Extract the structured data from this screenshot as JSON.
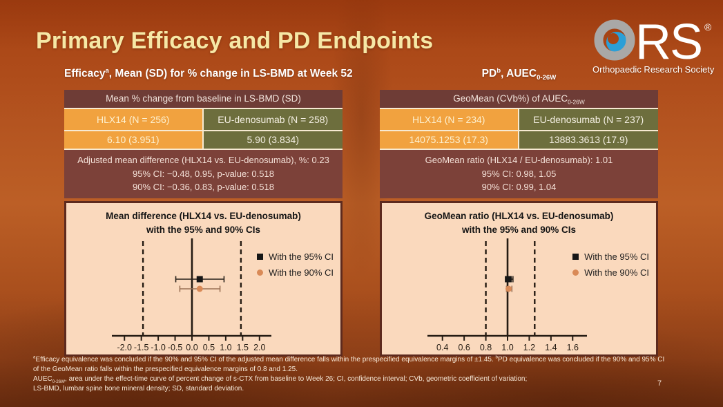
{
  "slide": {
    "title": "Primary Efficacy and PD Endpoints",
    "page_number": "7"
  },
  "logo": {
    "rs_text": "RS",
    "registered": "®",
    "tagline": "Orthopaedic Research Society",
    "ring_color": "#a9a8a6",
    "globe_color": "#2b9fd7"
  },
  "colors": {
    "title_color": "#f6e8a6",
    "maroon_header": "#6e3c36",
    "maroon_stats": "#7c4139",
    "orange_cell": "#f1a23f",
    "olive_cell": "#6d6e3d",
    "plot_bg": "#fad9bd",
    "plot_border": "#5d2a1e",
    "axis": "#241b12",
    "marker_95": "#161616",
    "marker_90": "#d98a57"
  },
  "left": {
    "subtitle": [
      {
        "t": "Efficacy"
      },
      {
        "s": "sup",
        "t": "a"
      },
      {
        "t": ", Mean (SD) for % change in LS-BMD at Week 52"
      }
    ],
    "table": {
      "header": [
        {
          "t": "Mean % change from baseline in LS-BMD (SD)"
        }
      ],
      "columns": [
        {
          "header": "HLX14 (N = 256)",
          "value": "6.10 (3.951)"
        },
        {
          "header": "EU-denosumab (N = 258)",
          "value": "5.90 (3.834)"
        }
      ]
    },
    "stats": [
      "Adjusted mean difference (HLX14 vs. EU-denosumab), %: 0.23",
      "95% CI: −0.48, 0.95, p-value: 0.518",
      "90% CI: −0.36, 0.83, p-value: 0.518"
    ]
  },
  "right": {
    "subtitle": [
      {
        "t": "PD"
      },
      {
        "s": "sup",
        "t": "b"
      },
      {
        "t": ", AUEC"
      },
      {
        "s": "sub",
        "t": "0-26W"
      }
    ],
    "table": {
      "header": [
        {
          "t": "GeoMean (CVb%) of AUEC"
        },
        {
          "s": "sub",
          "t": "0-26W"
        }
      ],
      "columns": [
        {
          "header": "HLX14 (N = 234)",
          "value": "14075.1253 (17.3)"
        },
        {
          "header": "EU-denosumab (N = 237)",
          "value": "13883.3613 (17.9)"
        }
      ]
    },
    "stats": [
      "GeoMean ratio (HLX14 / EU-denosumab): 1.01",
      "95% CI: 0.98, 1.05",
      "90% CI: 0.99, 1.04"
    ]
  },
  "chart_data": [
    {
      "type": "forest",
      "title_lines": [
        "Mean difference (HLX14 vs. EU-denosumab)",
        "with the 95% and 90% CIs"
      ],
      "xlim": [
        -2.25,
        2.25
      ],
      "x_tick_labels": [
        "-2.0",
        "-1.5",
        "-1.0",
        "-0.5",
        "0.0",
        "0.5",
        "1.0",
        "1.5",
        "2.0"
      ],
      "center_line": 0.0,
      "equivalence_margins": [
        -1.45,
        1.45
      ],
      "series": [
        {
          "name": "With the 95% CI",
          "estimate": 0.23,
          "ci": [
            -0.48,
            0.95
          ],
          "marker": "square",
          "color": "#161616",
          "line_color": "#26201a"
        },
        {
          "name": "With the 90% CI",
          "estimate": 0.23,
          "ci": [
            -0.36,
            0.83
          ],
          "marker": "circle",
          "color": "#d98a57",
          "line_color": "#9b7257"
        }
      ]
    },
    {
      "type": "forest",
      "title_lines": [
        "GeoMean ratio (HLX14 vs. EU-denosumab)",
        "with the 95% and 90% CIs"
      ],
      "xlim": [
        0.3,
        1.7
      ],
      "x_tick_labels": [
        "0.4",
        "0.6",
        "0.8",
        "1.0",
        "1.2",
        "1.4",
        "1.6"
      ],
      "center_line": 1.0,
      "equivalence_margins": [
        0.8,
        1.25
      ],
      "series": [
        {
          "name": "With the 95% CI",
          "estimate": 1.01,
          "ci": [
            0.98,
            1.05
          ],
          "marker": "square",
          "color": "#161616",
          "line_color": "#26201a"
        },
        {
          "name": "With the 90% CI",
          "estimate": 1.01,
          "ci": [
            0.99,
            1.04
          ],
          "marker": "circle",
          "color": "#d98a57",
          "line_color": "#9b7257"
        }
      ]
    }
  ],
  "footnotes": [
    [
      {
        "s": "sup",
        "t": "a"
      },
      {
        "t": "Efficacy equivalence was concluded if the 90% and 95% CI of the adjusted mean difference falls within the prespecified equivalence margins of ±1.45. "
      },
      {
        "s": "sup",
        "t": "b"
      },
      {
        "t": "PD equivalence was concluded if the 90% and 95% CI"
      }
    ],
    [
      {
        "t": "of the GeoMean ratio falls within the prespecified equivalence margins of 0.8 and 1.25."
      }
    ],
    [
      {
        "t": "AUEC"
      },
      {
        "s": "sub",
        "t": "0-26W"
      },
      {
        "t": ", area under the effect-time curve of percent change of s-CTX from baseline to Week 26; CI, confidence interval; CVb, geometric coefficient of variation;"
      }
    ],
    [
      {
        "t": "LS-BMD, lumbar spine bone mineral density; SD, standard deviation."
      }
    ]
  ]
}
